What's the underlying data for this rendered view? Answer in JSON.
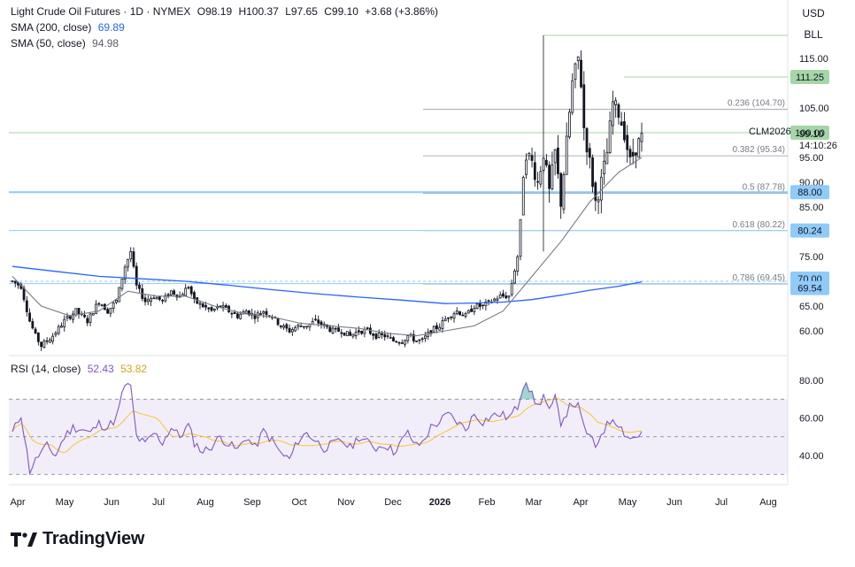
{
  "header": {
    "symbol": "Light Crude Oil Futures · 1D · NYMEX",
    "open": "O98.19",
    "high": "H100.37",
    "low": "L97.65",
    "close": "C99.10",
    "change": "+3.68 (+3.86%)",
    "sma200_label": "SMA (200, close)",
    "sma200_value": "69.89",
    "sma50_label": "SMA (50, close)",
    "sma50_value": "94.98",
    "rsi_label": "RSI (14, close)",
    "rsi_value": "52.43",
    "rsi_ma_value": "53.82"
  },
  "controls": {
    "currency": "USD",
    "scale": "BLL"
  },
  "brand": {
    "name": "TradingView"
  },
  "colors": {
    "up": "#131722",
    "down": "#131722",
    "sma50": "#787b86",
    "sma200": "#2962ff",
    "rsi": "#7e57c2",
    "rsi_ma": "#f7c843",
    "green_level": "#a5d6a7",
    "blue_level": "#90caf9",
    "bg": "#ffffff"
  },
  "chart_data": {
    "type": "candlestick",
    "price_axis": {
      "ticks": [
        "115.00",
        "105.00",
        "95.00",
        "90.00",
        "85.00",
        "75.00",
        "65.00",
        "60.00"
      ]
    },
    "x_axis": {
      "ticks": [
        "Apr",
        "May",
        "Jun",
        "Jul",
        "Aug",
        "Sep",
        "Oct",
        "Nov",
        "Dec",
        "2026",
        "Feb",
        "Mar",
        "Apr",
        "May",
        "Jun",
        "Jul",
        "Aug"
      ]
    },
    "price_badges": [
      {
        "value": 111.25,
        "label": "111.25",
        "kind": "green"
      },
      {
        "value": 100.0,
        "label": "100.00",
        "kind": "green"
      },
      {
        "value": 88.0,
        "label": "88.00",
        "kind": "blue"
      },
      {
        "value": 80.24,
        "label": "80.24",
        "kind": "blue"
      },
      {
        "value": 70.0,
        "label": "70.00",
        "kind": "blue"
      },
      {
        "value": 69.54,
        "label": "69.54",
        "kind": "blue"
      }
    ],
    "last_price": {
      "value": 99.1,
      "label": "99.10",
      "symbol": "CLM2026",
      "countdown": "14:10:26"
    },
    "fibonacci": [
      {
        "value": 104.7,
        "label": "0.236 (104.70)"
      },
      {
        "value": 95.34,
        "label": "0.382 (95.34)"
      },
      {
        "value": 87.78,
        "label": "0.5 (87.78)"
      },
      {
        "value": 80.22,
        "label": "0.618 (80.22)"
      },
      {
        "value": 69.45,
        "label": "0.786 (69.45)"
      }
    ],
    "rsi_axis": {
      "ticks": [
        "80.00",
        "60.00",
        "40.00"
      ],
      "band": [
        30,
        70
      ]
    },
    "keypoints": [
      [
        0,
        70
      ],
      [
        3,
        69
      ],
      [
        6,
        62
      ],
      [
        8,
        59
      ],
      [
        10,
        57
      ],
      [
        14,
        59
      ],
      [
        18,
        62
      ],
      [
        22,
        64
      ],
      [
        26,
        62
      ],
      [
        30,
        66
      ],
      [
        33,
        64
      ],
      [
        36,
        66
      ],
      [
        39,
        73
      ],
      [
        41,
        76
      ],
      [
        43,
        69
      ],
      [
        46,
        66
      ],
      [
        49,
        67
      ],
      [
        52,
        66
      ],
      [
        55,
        68
      ],
      [
        58,
        67
      ],
      [
        61,
        69
      ],
      [
        63,
        66
      ],
      [
        66,
        65
      ],
      [
        69,
        64
      ],
      [
        72,
        65
      ],
      [
        75,
        64
      ],
      [
        78,
        63
      ],
      [
        81,
        64
      ],
      [
        84,
        63
      ],
      [
        87,
        64
      ],
      [
        90,
        63
      ],
      [
        93,
        61
      ],
      [
        96,
        60
      ],
      [
        99,
        61
      ],
      [
        102,
        61
      ],
      [
        105,
        62
      ],
      [
        108,
        61
      ],
      [
        111,
        60
      ],
      [
        114,
        60
      ],
      [
        117,
        59
      ],
      [
        120,
        60
      ],
      [
        123,
        60
      ],
      [
        126,
        59
      ],
      [
        129,
        59
      ],
      [
        132,
        58
      ],
      [
        135,
        58
      ],
      [
        137,
        59
      ],
      [
        140,
        58
      ],
      [
        142,
        58
      ],
      [
        145,
        60
      ],
      [
        148,
        61
      ],
      [
        151,
        63
      ],
      [
        154,
        64
      ],
      [
        157,
        63
      ],
      [
        160,
        65
      ],
      [
        163,
        65
      ],
      [
        166,
        66
      ],
      [
        169,
        67
      ],
      [
        172,
        67
      ],
      [
        175,
        75
      ],
      [
        176,
        82
      ],
      [
        177,
        92
      ],
      [
        178,
        96
      ],
      [
        180,
        94
      ],
      [
        182,
        90
      ],
      [
        184,
        96
      ],
      [
        186,
        88
      ],
      [
        188,
        96
      ],
      [
        190,
        86
      ],
      [
        192,
        98
      ],
      [
        194,
        110
      ],
      [
        196,
        115
      ],
      [
        197,
        110
      ],
      [
        198,
        101
      ],
      [
        200,
        94
      ],
      [
        202,
        86
      ],
      [
        204,
        90
      ],
      [
        206,
        96
      ],
      [
        208,
        106
      ],
      [
        210,
        104
      ],
      [
        212,
        100
      ],
      [
        214,
        94
      ],
      [
        216,
        97
      ],
      [
        218,
        99
      ]
    ],
    "sma200_points": [
      [
        0,
        73
      ],
      [
        15,
        72
      ],
      [
        30,
        71
      ],
      [
        45,
        70.5
      ],
      [
        60,
        70
      ],
      [
        75,
        69.2
      ],
      [
        90,
        68.3
      ],
      [
        105,
        67.5
      ],
      [
        120,
        66.8
      ],
      [
        135,
        66.2
      ],
      [
        150,
        65.5
      ],
      [
        160,
        65.6
      ],
      [
        170,
        65.8
      ],
      [
        180,
        66.3
      ],
      [
        190,
        67.2
      ],
      [
        200,
        68.2
      ],
      [
        210,
        69.0
      ],
      [
        218,
        69.9
      ]
    ],
    "sma50_points": [
      [
        0,
        71
      ],
      [
        10,
        65
      ],
      [
        20,
        63
      ],
      [
        30,
        64
      ],
      [
        40,
        68
      ],
      [
        50,
        67
      ],
      [
        60,
        67
      ],
      [
        70,
        65
      ],
      [
        80,
        63.5
      ],
      [
        90,
        62.8
      ],
      [
        100,
        61.5
      ],
      [
        110,
        61
      ],
      [
        120,
        60.5
      ],
      [
        130,
        59.5
      ],
      [
        140,
        59
      ],
      [
        150,
        60
      ],
      [
        160,
        61
      ],
      [
        170,
        64
      ],
      [
        180,
        71
      ],
      [
        190,
        78
      ],
      [
        200,
        86
      ],
      [
        210,
        92
      ],
      [
        218,
        95
      ]
    ],
    "rsi_keypoints": [
      [
        0,
        52
      ],
      [
        3,
        62
      ],
      [
        6,
        32
      ],
      [
        9,
        40
      ],
      [
        12,
        45
      ],
      [
        15,
        40
      ],
      [
        18,
        50
      ],
      [
        21,
        55
      ],
      [
        24,
        54
      ],
      [
        27,
        52
      ],
      [
        30,
        57
      ],
      [
        33,
        55
      ],
      [
        36,
        60
      ],
      [
        39,
        78
      ],
      [
        41,
        76
      ],
      [
        43,
        50
      ],
      [
        46,
        46
      ],
      [
        49,
        52
      ],
      [
        52,
        47
      ],
      [
        55,
        55
      ],
      [
        58,
        50
      ],
      [
        61,
        56
      ],
      [
        63,
        47
      ],
      [
        66,
        42
      ],
      [
        69,
        45
      ],
      [
        72,
        50
      ],
      [
        75,
        46
      ],
      [
        78,
        43
      ],
      [
        81,
        50
      ],
      [
        84,
        44
      ],
      [
        87,
        53
      ],
      [
        90,
        48
      ],
      [
        93,
        41
      ],
      [
        96,
        38
      ],
      [
        99,
        48
      ],
      [
        102,
        52
      ],
      [
        105,
        48
      ],
      [
        108,
        44
      ],
      [
        111,
        46
      ],
      [
        114,
        48
      ],
      [
        117,
        44
      ],
      [
        120,
        50
      ],
      [
        123,
        47
      ],
      [
        126,
        44
      ],
      [
        129,
        46
      ],
      [
        132,
        42
      ],
      [
        135,
        48
      ],
      [
        137,
        52
      ],
      [
        140,
        45
      ],
      [
        142,
        47
      ],
      [
        145,
        55
      ],
      [
        148,
        58
      ],
      [
        151,
        62
      ],
      [
        154,
        58
      ],
      [
        157,
        54
      ],
      [
        160,
        62
      ],
      [
        163,
        58
      ],
      [
        166,
        61
      ],
      [
        169,
        62
      ],
      [
        172,
        60
      ],
      [
        175,
        66
      ],
      [
        176,
        72
      ],
      [
        177,
        78
      ],
      [
        178,
        80
      ],
      [
        180,
        72
      ],
      [
        182,
        66
      ],
      [
        184,
        72
      ],
      [
        186,
        63
      ],
      [
        188,
        70
      ],
      [
        190,
        58
      ],
      [
        192,
        63
      ],
      [
        194,
        68
      ],
      [
        196,
        66
      ],
      [
        197,
        60
      ],
      [
        198,
        55
      ],
      [
        200,
        50
      ],
      [
        202,
        44
      ],
      [
        204,
        52
      ],
      [
        206,
        56
      ],
      [
        208,
        60
      ],
      [
        210,
        57
      ],
      [
        212,
        52
      ],
      [
        214,
        49
      ],
      [
        216,
        50
      ],
      [
        218,
        52
      ]
    ]
  }
}
